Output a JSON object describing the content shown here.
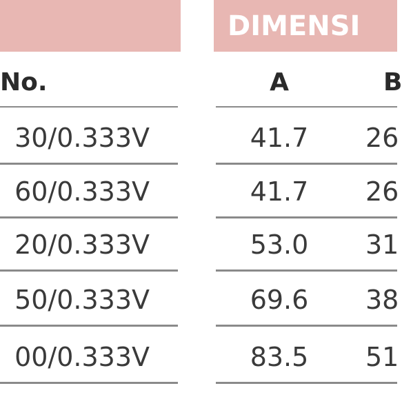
{
  "table": {
    "group_header": "DIMENSI",
    "columns": [
      "No.",
      "A",
      "B"
    ],
    "rows": [
      [
        "30/0.333V",
        "41.7",
        "26"
      ],
      [
        "60/0.333V",
        "41.7",
        "26"
      ],
      [
        "20/0.333V",
        "53.0",
        "31"
      ],
      [
        "50/0.333V",
        "69.6",
        "38"
      ],
      [
        "00/0.333V",
        "83.5",
        "51"
      ]
    ]
  }
}
